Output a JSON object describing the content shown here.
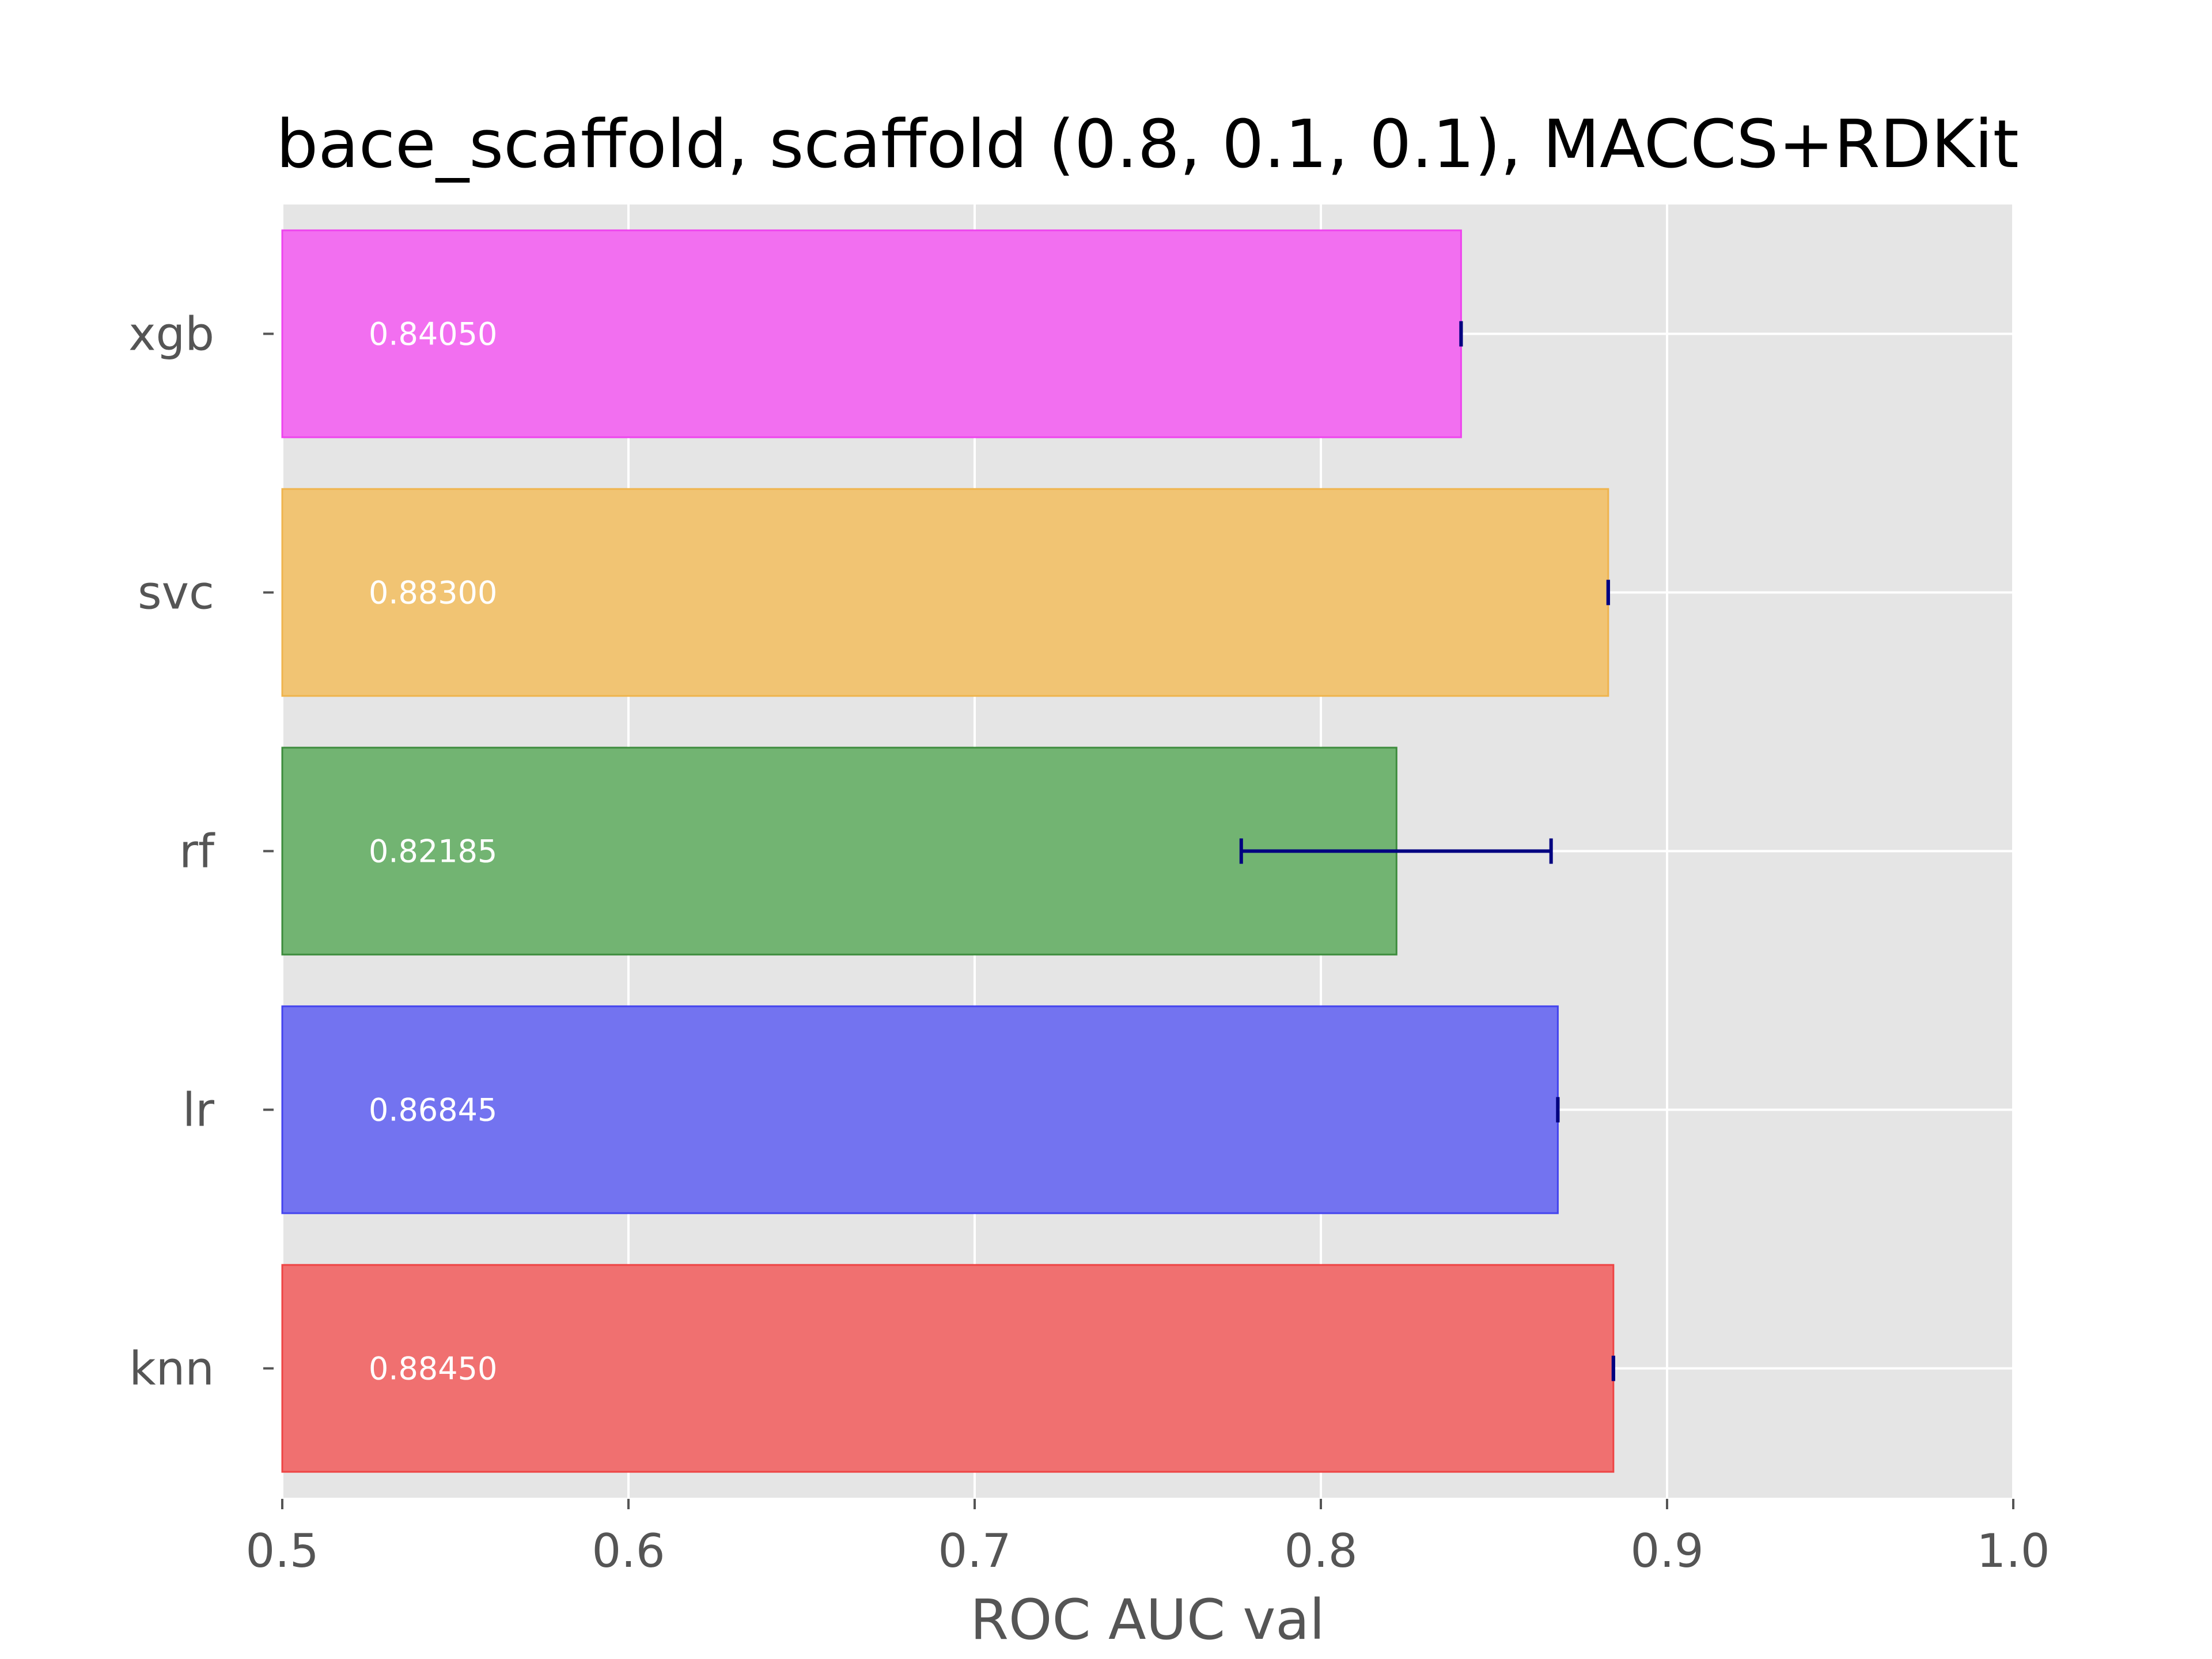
{
  "chart_data": {
    "type": "bar",
    "orientation": "horizontal",
    "title": "bace_scaffold, scaffold (0.8, 0.1, 0.1), MACCS+RDKit",
    "xlabel": "ROC AUC val",
    "ylabel": "",
    "xlim": [
      0.5,
      1.0
    ],
    "xticks": [
      "0.5",
      "0.6",
      "0.7",
      "0.8",
      "0.9",
      "1.0"
    ],
    "grid": true,
    "categories": [
      "knn",
      "lr",
      "rf",
      "svc",
      "xgb"
    ],
    "values": [
      0.8845,
      0.86845,
      0.82185,
      0.883,
      0.8405
    ],
    "value_labels": [
      "0.88450",
      "0.86845",
      "0.82185",
      "0.88300",
      "0.84050"
    ],
    "error_low": [
      0.8845,
      0.86845,
      0.777,
      0.883,
      0.8405
    ],
    "error_high": [
      0.8845,
      0.86845,
      0.8665,
      0.883,
      0.8405
    ],
    "colors": [
      "#f07070",
      "#7373f0",
      "#72b472",
      "#f1c473",
      "#f26ff0"
    ],
    "edge_colors": [
      "#ee4444",
      "#4444ee",
      "#3d8c3d",
      "#efb44d",
      "#ee44ee"
    ],
    "error_color": "#000080",
    "plot_background": "#e5e5e5"
  }
}
